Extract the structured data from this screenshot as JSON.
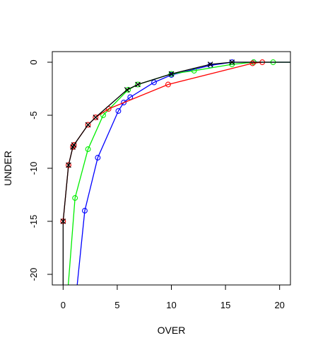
{
  "chart_data": {
    "type": "line",
    "title": "",
    "xlabel": "OVER",
    "ylabel": "UNDER",
    "xlim": [
      -1,
      21
    ],
    "ylim": [
      -21,
      1
    ],
    "x_ticks": [
      0,
      5,
      10,
      15,
      20
    ],
    "x_tick_labels": [
      "0",
      "5",
      "10",
      "15",
      "20"
    ],
    "y_ticks": [
      0,
      -5,
      -10,
      -15,
      -20
    ],
    "y_tick_labels": [
      "0",
      "-5",
      "-10",
      "-15",
      "-20"
    ],
    "grid": false,
    "legend": "none",
    "series": [
      {
        "color": "#0000ff",
        "marker": "circle",
        "x": [
          1.2,
          2.0,
          3.2,
          5.1,
          5.6,
          6.2,
          8.4,
          10.0,
          13.6,
          15.6,
          17.6,
          21.0
        ],
        "y": [
          -22.0,
          -14.0,
          -9.0,
          -4.6,
          -3.8,
          -3.3,
          -1.9,
          -1.2,
          -0.3,
          0.0,
          0.0,
          0.0
        ],
        "marker_indices": [
          1,
          2,
          3,
          4,
          5,
          6,
          7,
          8,
          9,
          10
        ]
      },
      {
        "color": "#00ee00",
        "marker": "circle",
        "x": [
          0.4,
          1.1,
          2.3,
          3.7,
          6.0,
          6.9,
          10.0,
          12.1,
          15.6,
          17.6,
          19.4,
          21.0
        ],
        "y": [
          -22.0,
          -12.8,
          -8.2,
          -5.0,
          -2.6,
          -2.1,
          -1.1,
          -0.8,
          -0.2,
          0.0,
          0.0,
          0.0
        ],
        "marker_indices": [
          1,
          2,
          3,
          4,
          5,
          6,
          7,
          8,
          9,
          10
        ]
      },
      {
        "color": "#ff0000",
        "marker": "circle",
        "x": [
          0.0,
          0.5,
          0.9,
          1.0,
          2.3,
          3.0,
          4.2,
          9.7,
          17.5,
          18.4
        ],
        "y": [
          -15.0,
          -9.7,
          -8.0,
          -7.8,
          -5.9,
          -5.2,
          -4.4,
          -2.1,
          -0.1,
          0.0
        ],
        "marker_indices": [
          0,
          1,
          2,
          3,
          4,
          5,
          6,
          7,
          8,
          9
        ]
      },
      {
        "color": "#000000",
        "marker": "x",
        "x": [
          0.0,
          0.0,
          0.5,
          0.9,
          1.0,
          2.3,
          3.0,
          5.9,
          6.9,
          10.0,
          13.6,
          15.6,
          17.6,
          21.0
        ],
        "y": [
          -22.0,
          -15.0,
          -9.7,
          -8.0,
          -7.8,
          -5.9,
          -5.2,
          -2.6,
          -2.1,
          -1.1,
          -0.2,
          0.0,
          0.0,
          0.0
        ],
        "marker_indices": [
          1,
          2,
          3,
          4,
          5,
          6,
          7,
          8,
          9,
          10,
          11
        ]
      }
    ]
  }
}
